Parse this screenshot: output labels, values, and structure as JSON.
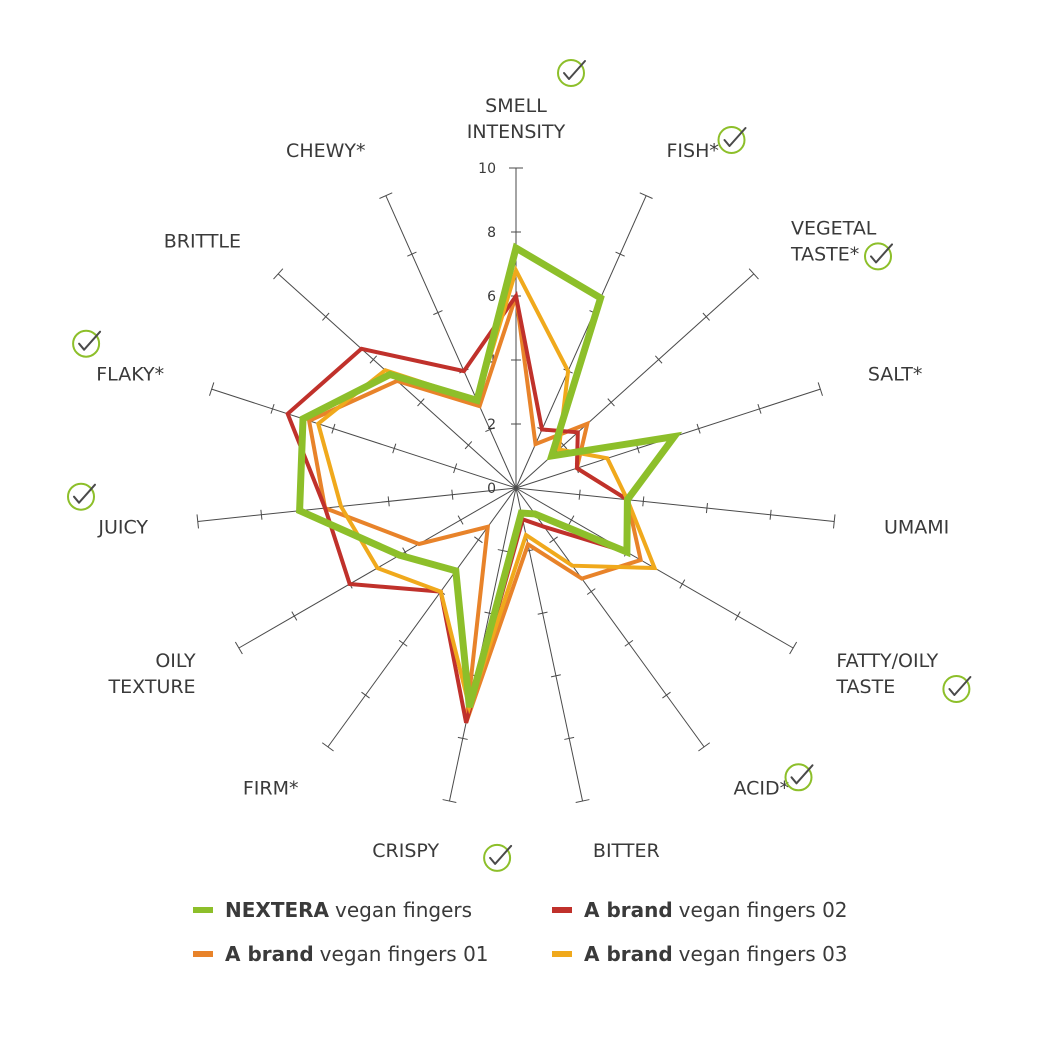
{
  "chart_data": {
    "type": "radar",
    "rlim": [
      0,
      10
    ],
    "tick_values": [
      0,
      2,
      4,
      6,
      8,
      10
    ],
    "tick_labels": [
      "0",
      "2",
      "4",
      "6",
      "8",
      "10"
    ],
    "axes": [
      {
        "label": [
          "SMELL",
          "INTENSITY"
        ],
        "checked": true
      },
      {
        "label": [
          "FISH*"
        ],
        "checked": true
      },
      {
        "label": [
          "VEGETAL",
          "TASTE*"
        ],
        "checked": true
      },
      {
        "label": [
          "SALT*"
        ],
        "checked": false
      },
      {
        "label": [
          "UMAMI"
        ],
        "checked": false
      },
      {
        "label": [
          "FATTY/OILY",
          "TASTE"
        ],
        "checked": true
      },
      {
        "label": [
          "ACID*"
        ],
        "checked": true
      },
      {
        "label": [
          "BITTER"
        ],
        "checked": false
      },
      {
        "label": [
          "CRISPY"
        ],
        "checked": true
      },
      {
        "label": [
          "FIRM*"
        ],
        "checked": false
      },
      {
        "label": [
          "OILY",
          "TEXTURE"
        ],
        "checked": false
      },
      {
        "label": [
          "JUICY"
        ],
        "checked": true
      },
      {
        "label": [
          "FLAKY*"
        ],
        "checked": true
      },
      {
        "label": [
          "BRITTLE"
        ],
        "checked": false
      },
      {
        "label": [
          "CHEWY*"
        ],
        "checked": false
      }
    ],
    "series": [
      {
        "brand": "A brand",
        "name": "vegan fingers 01",
        "color": "#e8832a",
        "values": [
          6.0,
          1.5,
          3.0,
          2.0,
          3.5,
          4.5,
          3.5,
          1.8,
          7.5,
          1.5,
          3.5,
          6.0,
          6.8,
          5.0,
          2.8
        ]
      },
      {
        "brand": "A brand",
        "name": "vegan fingers 02",
        "color": "#c0312b",
        "values": [
          6.0,
          2.0,
          2.6,
          2.0,
          3.5,
          4.0,
          1.5,
          1.0,
          7.5,
          4.0,
          6.0,
          6.0,
          7.5,
          6.5,
          4.0
        ]
      },
      {
        "brand": "A brand",
        "name": "vegan fingers 03",
        "color": "#f0a91c",
        "values": [
          6.8,
          4.0,
          1.8,
          3.0,
          3.5,
          5.0,
          3.0,
          1.5,
          7.0,
          4.0,
          5.0,
          5.5,
          6.5,
          5.5,
          3.0
        ]
      },
      {
        "brand": "NEXTERA",
        "name": "vegan fingers",
        "color": "#8dbf2a",
        "values": [
          7.5,
          6.5,
          1.5,
          5.2,
          3.5,
          4.0,
          1.0,
          0.8,
          7.0,
          3.2,
          4.2,
          6.8,
          7.0,
          5.3,
          3.0
        ]
      }
    ]
  },
  "legend": [
    {
      "brand": "NEXTERA",
      "name": "vegan fingers",
      "color": "#8dbf2a"
    },
    {
      "brand": "A brand",
      "name": "vegan fingers 02",
      "color": "#c0312b"
    },
    {
      "brand": "A brand",
      "name": "vegan fingers 01",
      "color": "#e8832a"
    },
    {
      "brand": "A brand",
      "name": "vegan fingers 03",
      "color": "#f0a91c"
    }
  ],
  "icons": {
    "check": "check-circle-icon",
    "check_color": "#8dbf2a"
  }
}
